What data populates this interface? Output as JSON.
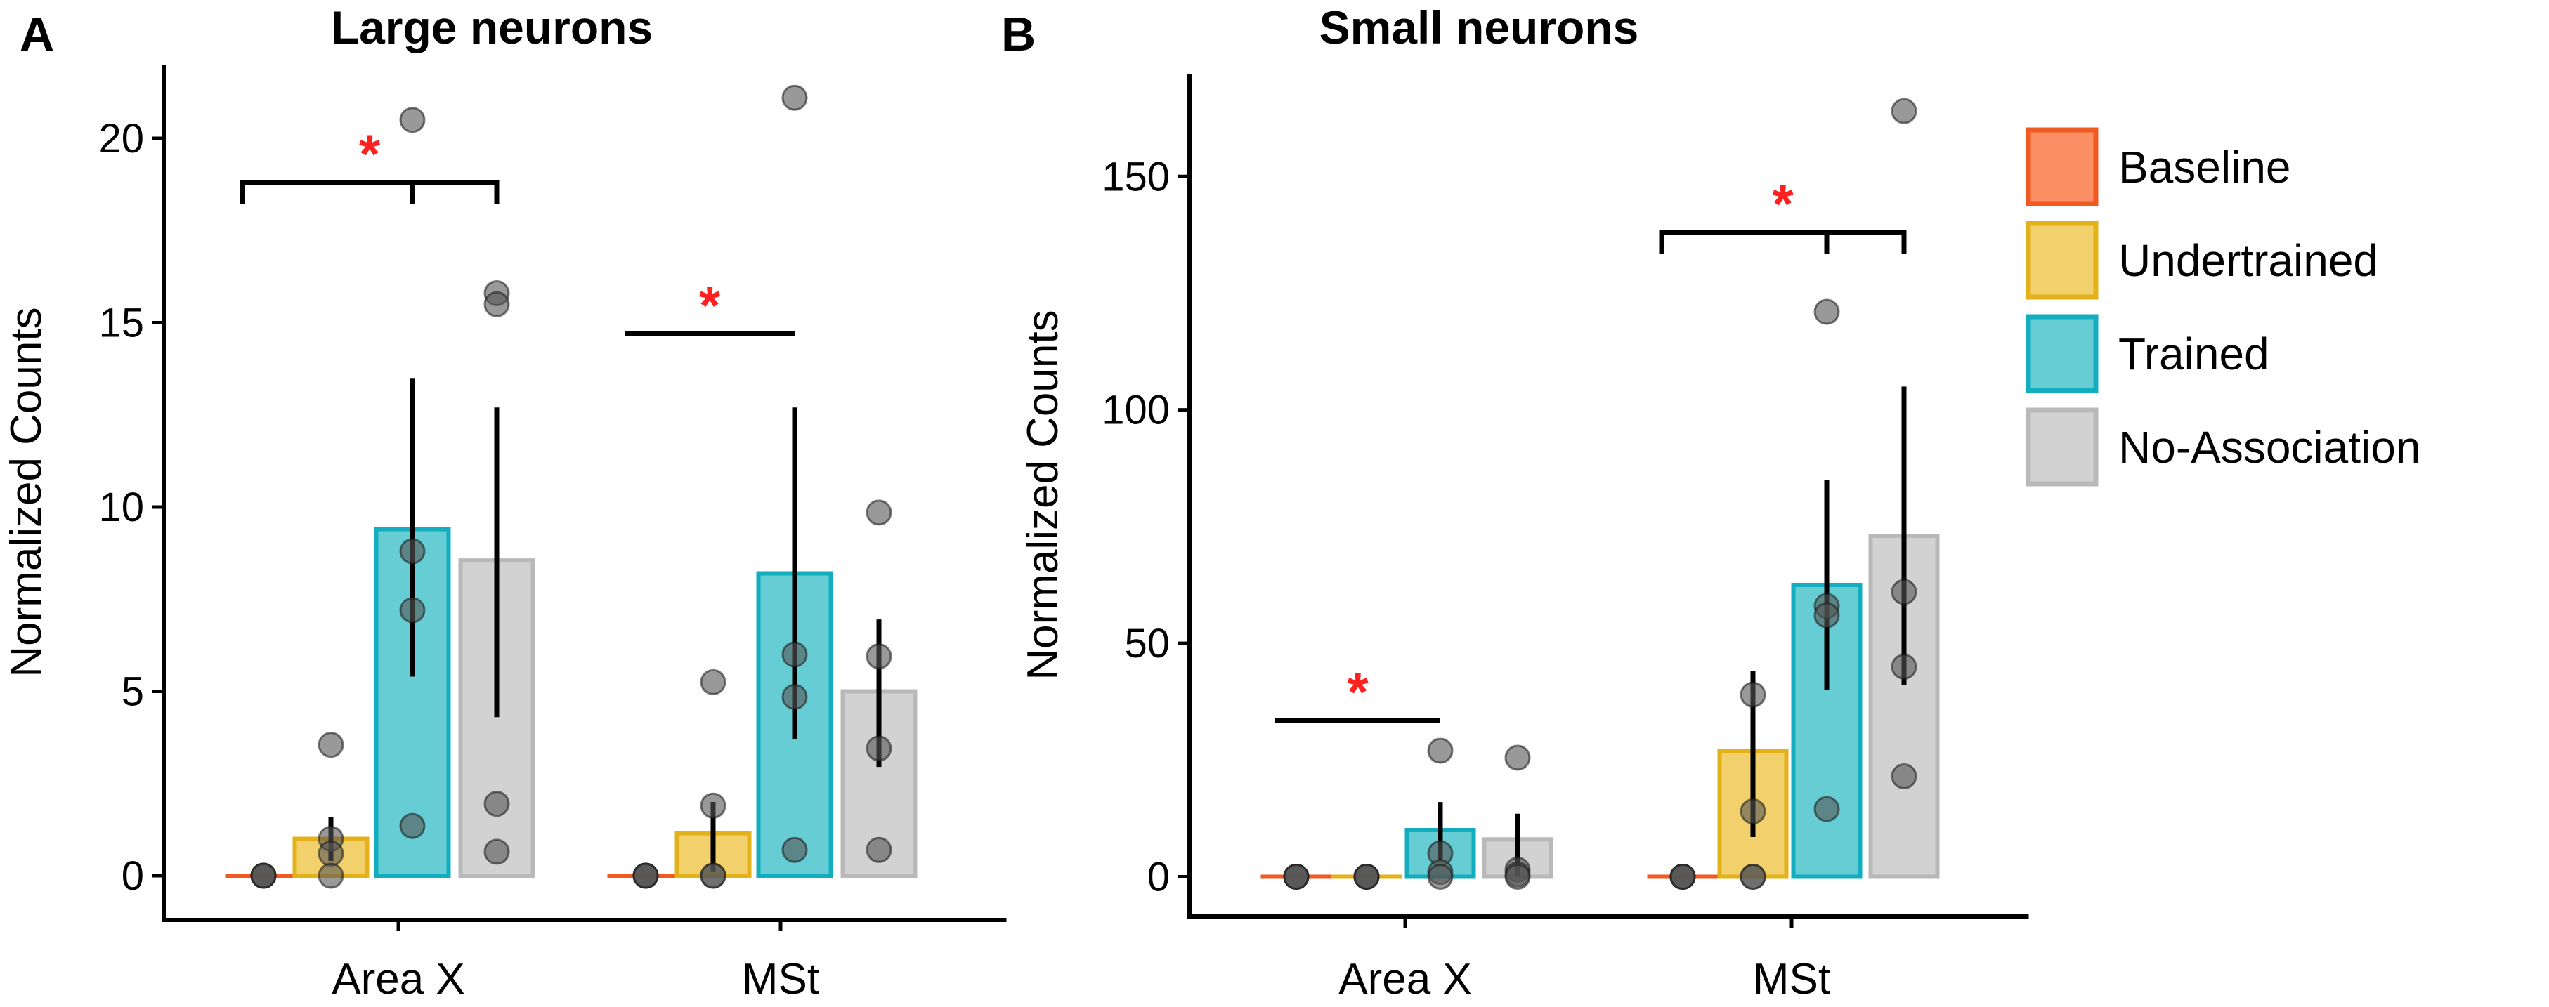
{
  "colors": {
    "Baseline": {
      "fill": "#FB8E63",
      "stroke": "#F05A22"
    },
    "Undertrained": {
      "fill": "#F2D06B",
      "stroke": "#E3B21A"
    },
    "Trained": {
      "fill": "#66CDD4",
      "stroke": "#13ADC0"
    },
    "No-Association": {
      "fill": "#D2D2D2",
      "stroke": "#B9B9B9"
    },
    "point": "#555555",
    "significance": "#FF2020",
    "axis": "#000000"
  },
  "legend": {
    "entries": [
      "Baseline",
      "Undertrained",
      "Trained",
      "No-Association"
    ]
  },
  "chart_data": [
    {
      "type": "bar",
      "panel_label": "A",
      "title": "Large neurons",
      "xlabel": "",
      "ylabel": "Normalized Counts",
      "ylim": [
        -1.2,
        22
      ],
      "yticks": [
        0,
        5,
        10,
        15,
        20
      ],
      "categories": [
        "Area X",
        "MSt"
      ],
      "series": [
        {
          "name": "Baseline",
          "values": [
            0,
            0
          ],
          "errors": [
            [
              0,
              0
            ],
            [
              0,
              0
            ]
          ],
          "points": [
            [
              0,
              0,
              0,
              0
            ],
            [
              0,
              0,
              0,
              0
            ]
          ]
        },
        {
          "name": "Undertrained",
          "values": [
            1.0,
            1.15
          ],
          "errors": [
            [
              0.4,
              1.6
            ],
            [
              0.1,
              2.0
            ]
          ],
          "points": [
            [
              3.55,
              1.0,
              0.6,
              0.0
            ],
            [
              5.25,
              1.9,
              0.0,
              0.0
            ]
          ]
        },
        {
          "name": "Trained",
          "values": [
            9.4,
            8.2
          ],
          "errors": [
            [
              5.4,
              13.5
            ],
            [
              3.7,
              12.7
            ]
          ],
          "points": [
            [
              20.5,
              8.8,
              7.2,
              1.35
            ],
            [
              21.1,
              6.0,
              4.85,
              0.7
            ]
          ]
        },
        {
          "name": "No-Association",
          "values": [
            8.55,
            5.0
          ],
          "errors": [
            [
              4.3,
              12.7
            ],
            [
              2.95,
              6.95
            ]
          ],
          "points": [
            [
              15.8,
              15.5,
              1.95,
              0.65
            ],
            [
              9.85,
              5.95,
              3.45,
              0.7
            ]
          ]
        }
      ],
      "significance": [
        {
          "category": "Area X",
          "bracket": "Baseline vs Trained & No-Association",
          "label": "*",
          "y": 18.8
        },
        {
          "category": "MSt",
          "bracket": "Baseline vs Trained",
          "label": "*",
          "y": 14.7
        }
      ]
    },
    {
      "type": "bar",
      "panel_label": "B",
      "title": "Small neurons",
      "xlabel": "",
      "ylabel": "Normalized Counts",
      "ylim": [
        -8.5,
        172
      ],
      "yticks": [
        0,
        50,
        100,
        150
      ],
      "categories": [
        "Area X",
        "MSt"
      ],
      "series": [
        {
          "name": "Baseline",
          "values": [
            0,
            0
          ],
          "errors": [
            [
              0,
              0
            ],
            [
              0,
              0
            ]
          ],
          "points": [
            [
              0,
              0,
              0,
              0
            ],
            [
              0,
              0,
              0,
              0
            ]
          ]
        },
        {
          "name": "Undertrained",
          "values": [
            0,
            27
          ],
          "errors": [
            [
              0,
              0
            ],
            [
              8.5,
              44
            ]
          ],
          "points": [
            [
              0,
              0,
              0,
              0
            ],
            [
              39,
              14,
              0,
              0
            ]
          ]
        },
        {
          "name": "Trained",
          "values": [
            10,
            62.5
          ],
          "errors": [
            [
              3.5,
              16
            ],
            [
              40,
              85
            ]
          ],
          "points": [
            [
              27,
              5,
              1,
              0
            ],
            [
              121,
              58,
              56,
              14.5
            ]
          ]
        },
        {
          "name": "No-Association",
          "values": [
            8,
            73
          ],
          "errors": [
            [
              0,
              13.5
            ],
            [
              41,
              105
            ]
          ],
          "points": [
            [
              25.5,
              1.5,
              0.5,
              0
            ],
            [
              164,
              61,
              45,
              21.5
            ]
          ]
        }
      ],
      "significance": [
        {
          "category": "Area X",
          "bracket": "Baseline vs Trained",
          "label": "*",
          "y": 33.5
        },
        {
          "category": "MSt",
          "bracket": "Baseline vs Trained & No-Association",
          "label": "*",
          "y": 138
        }
      ]
    }
  ]
}
